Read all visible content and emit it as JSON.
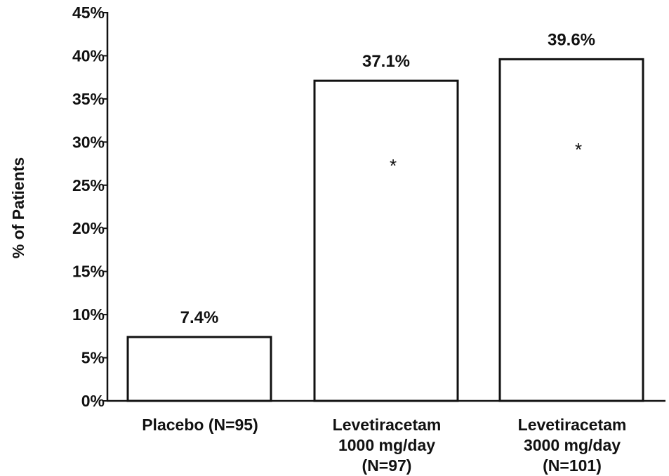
{
  "chart_data": {
    "type": "bar",
    "title": "",
    "xlabel": "",
    "ylabel": "% of Patients",
    "ylim": [
      0,
      45
    ],
    "yticks": [
      0,
      5,
      10,
      15,
      20,
      25,
      30,
      35,
      40,
      45
    ],
    "ytick_labels": [
      "0%",
      "5%",
      "10%",
      "15%",
      "20%",
      "25%",
      "30%",
      "35%",
      "40%",
      "45%"
    ],
    "categories": [
      [
        "Placebo (N=95)"
      ],
      [
        "Levetiracetam",
        "1000 mg/day",
        "(N=97)"
      ],
      [
        "Levetiracetam",
        "3000 mg/day",
        "(N=101)"
      ]
    ],
    "values": [
      7.4,
      37.1,
      39.6
    ],
    "data_labels": [
      "7.4%",
      "37.1%",
      "39.6%"
    ],
    "significance_markers": [
      "",
      "*",
      "*"
    ],
    "grid": false,
    "bar_fill": "#ffffff",
    "bar_stroke": "#111111"
  }
}
